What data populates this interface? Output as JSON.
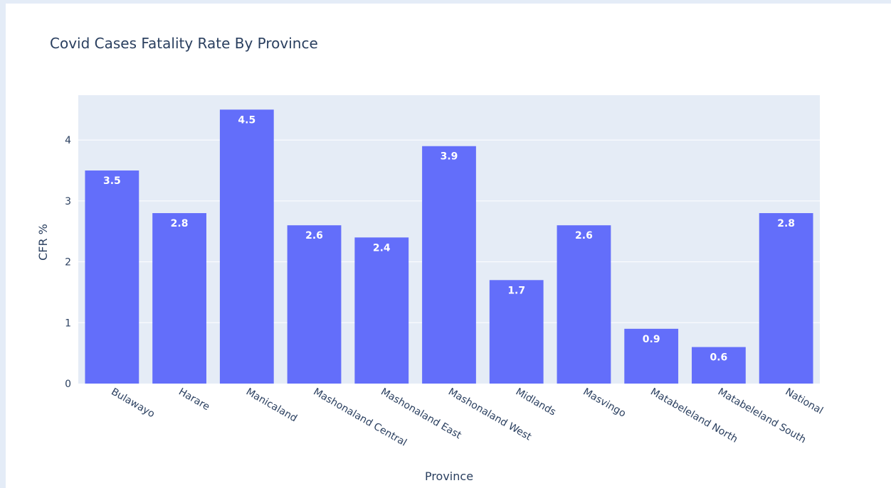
{
  "chart_data": {
    "type": "bar",
    "title": "Covid Cases Fatality Rate By Province",
    "xlabel": "Province",
    "ylabel": "CFR %",
    "categories": [
      "Bulawayo",
      "Harare",
      "Manicaland",
      "Mashonaland Central",
      "Mashonaland East",
      "Mashonaland West",
      "Midlands",
      "Masvingo",
      "Matabeleland North",
      "Matabeleland South",
      "National"
    ],
    "values": [
      3.5,
      2.8,
      4.5,
      2.6,
      2.4,
      3.9,
      1.7,
      2.6,
      0.9,
      0.6,
      2.8
    ],
    "value_labels": [
      "3.5",
      "2.8",
      "4.5",
      "2.6",
      "2.4",
      "3.9",
      "1.7",
      "2.6",
      "0.9",
      "0.6",
      "2.8"
    ],
    "yticks": [
      0,
      1,
      2,
      3,
      4
    ],
    "ylim": [
      0,
      4.737
    ],
    "grid": true,
    "legend": "none",
    "colors": {
      "bar": "#636efa",
      "plot_bg": "#e5ecf6",
      "grid": "#ffffff",
      "text": "#2a3f5f",
      "page_bg": "#e4ecf7"
    }
  }
}
